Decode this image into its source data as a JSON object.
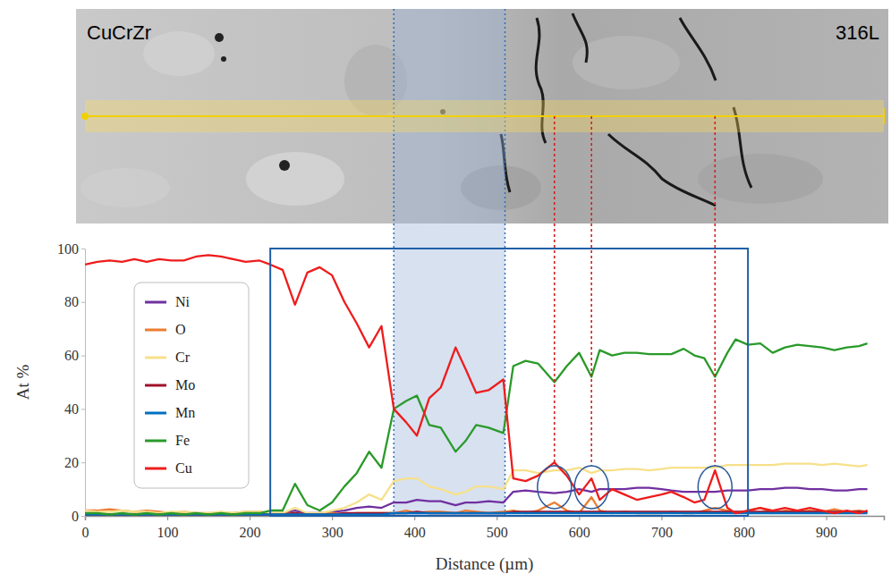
{
  "chart_data": {
    "type": "line",
    "x_label": "Distance (µm)",
    "y_label": "At %",
    "xlim": [
      0,
      970
    ],
    "xticks": [
      0,
      100,
      200,
      300,
      400,
      500,
      600,
      700,
      800,
      900
    ],
    "ylim": [
      0,
      100
    ],
    "yticks": [
      0,
      20,
      40,
      60,
      80,
      100
    ],
    "grid": false,
    "legend": "left",
    "x": [
      0,
      15,
      30,
      45,
      60,
      75,
      90,
      105,
      120,
      135,
      150,
      165,
      180,
      195,
      212,
      225,
      240,
      255,
      270,
      285,
      300,
      315,
      330,
      345,
      360,
      375,
      390,
      403,
      418,
      432,
      450,
      462,
      475,
      490,
      508,
      520,
      535,
      550,
      570,
      585,
      600,
      615,
      625,
      640,
      655,
      670,
      685,
      700,
      712,
      727,
      740,
      752,
      765,
      780,
      790,
      805,
      820,
      835,
      850,
      865,
      880,
      895,
      910,
      925,
      940,
      950
    ],
    "series": [
      {
        "name": "Ni",
        "color": "#7030a0",
        "values": [
          0.5,
          0.5,
          0.5,
          0.5,
          0.5,
          0.5,
          0.5,
          0.5,
          0.5,
          0.5,
          0.5,
          0.5,
          0.5,
          0.5,
          0.5,
          0.5,
          1,
          2,
          1,
          1,
          1.5,
          2,
          3,
          3.5,
          3,
          5,
          5,
          6,
          5.5,
          5.5,
          4,
          5,
          5,
          5.5,
          5,
          9,
          9.5,
          9,
          8.5,
          9,
          10,
          9,
          10,
          10,
          10,
          10.5,
          10.5,
          10,
          9.5,
          9,
          9,
          9,
          9,
          9.5,
          9.5,
          9.5,
          10,
          10,
          10.5,
          10.5,
          10,
          10,
          9.5,
          9.5,
          10,
          10
        ]
      },
      {
        "name": "O",
        "color": "#ed7d31",
        "values": [
          2,
          2,
          2.5,
          2,
          1.5,
          2,
          1.5,
          1,
          1.5,
          1,
          1,
          1,
          1,
          1.5,
          1.5,
          1,
          1,
          1,
          0.5,
          1,
          1,
          0.5,
          1,
          1,
          1,
          1,
          2,
          1,
          1.5,
          1.5,
          1,
          2,
          1.5,
          1,
          1.5,
          2,
          1,
          2,
          5,
          2,
          1,
          7,
          2,
          1,
          1.5,
          1,
          1,
          1,
          1.5,
          1,
          1,
          2,
          3,
          2,
          1,
          2,
          3,
          1,
          2,
          1.5,
          2,
          1.5,
          2.5,
          1.5,
          2,
          1.5
        ]
      },
      {
        "name": "Cr",
        "color": "#f7e08a",
        "values": [
          2,
          1.5,
          1.5,
          2,
          1.5,
          1.5,
          1,
          1.5,
          1.5,
          1,
          1,
          1.5,
          1,
          1.5,
          1.5,
          1,
          1,
          3,
          1,
          1,
          2,
          3,
          5,
          8,
          6,
          13,
          14,
          14,
          11,
          10,
          8,
          9,
          11,
          11,
          10,
          17,
          17,
          16,
          17,
          17,
          18,
          16,
          17,
          17,
          17.5,
          17.5,
          17,
          17.5,
          18,
          18,
          18,
          18,
          18,
          19,
          19,
          19,
          19,
          19,
          19.5,
          19.5,
          19.5,
          19,
          19.5,
          19,
          18.5,
          19
        ]
      },
      {
        "name": "Mo",
        "color": "#a0102a",
        "values": [
          0.5,
          0.5,
          0.5,
          0.5,
          0.5,
          0.5,
          0.5,
          0.5,
          0.5,
          0.5,
          0.5,
          0.5,
          0.5,
          0.5,
          0.5,
          0.5,
          0.5,
          1,
          0.5,
          0.5,
          0.5,
          1,
          1,
          1,
          1,
          1,
          1,
          1.5,
          1,
          1,
          1,
          1,
          1,
          1,
          1,
          1.5,
          1.5,
          1.5,
          1.5,
          1.5,
          1.5,
          1.5,
          1.5,
          1.5,
          1.5,
          1.5,
          1.5,
          1.5,
          1.5,
          1.5,
          1.5,
          1.5,
          1.5,
          1.5,
          1.5,
          1.5,
          1.5,
          1.5,
          1.5,
          1.5,
          1.5,
          1.5,
          1.5,
          1.5,
          1.5,
          1.5
        ]
      },
      {
        "name": "Mn",
        "color": "#0070c0",
        "values": [
          0.5,
          0.5,
          0.5,
          0.5,
          0.5,
          0.5,
          0.5,
          0.5,
          0.5,
          0.5,
          0.5,
          0.5,
          0.5,
          0.5,
          0.5,
          0.5,
          0.5,
          0.5,
          0.5,
          0.5,
          0.5,
          0.5,
          0.5,
          0.5,
          0.5,
          1,
          1,
          1,
          1,
          1,
          1,
          1,
          1,
          1,
          1,
          1,
          1,
          1,
          1,
          1,
          1,
          1,
          1,
          1,
          1,
          1,
          1,
          1,
          1,
          1,
          1,
          1,
          1,
          1,
          1,
          1,
          1,
          1,
          1,
          1,
          1,
          1,
          1,
          1,
          1,
          1
        ]
      },
      {
        "name": "Fe",
        "color": "#2a9a2a",
        "values": [
          1,
          1,
          0.5,
          1,
          0.5,
          1,
          0.5,
          1,
          0.5,
          1,
          0.5,
          1,
          0.5,
          1,
          1,
          2,
          2,
          12,
          4,
          2,
          5,
          11,
          16,
          24,
          18,
          40,
          43,
          45,
          34,
          33,
          24,
          28,
          34,
          33,
          31,
          56,
          58,
          57,
          50,
          56,
          61,
          52,
          62,
          60,
          61,
          61,
          60.5,
          60.5,
          60.5,
          62.5,
          60,
          59,
          52,
          61,
          66,
          64,
          64.5,
          61,
          63,
          64,
          63.5,
          63,
          62,
          63,
          63.5,
          64.5
        ]
      },
      {
        "name": "Cu",
        "color": "#ee1c1c",
        "values": [
          94,
          95,
          95.5,
          95,
          96,
          95,
          96,
          95.5,
          95.5,
          97,
          97.5,
          97,
          96,
          95,
          95.5,
          94,
          92,
          79,
          91,
          93,
          90,
          80,
          72,
          63,
          71,
          40,
          35,
          30,
          44,
          48,
          63,
          55,
          46,
          47,
          51,
          14,
          13,
          15,
          20,
          15,
          8,
          14,
          6,
          10,
          8,
          6,
          7,
          8,
          9,
          7,
          5,
          6,
          17,
          3,
          1,
          2,
          3,
          2,
          3,
          2,
          3,
          2,
          1,
          2,
          1,
          2
        ]
      }
    ],
    "annotations": {
      "image_labels": [
        "CuCrZr",
        "316L"
      ],
      "shaded_region": [
        375,
        510
      ],
      "box": {
        "x": [
          225,
          805
        ],
        "y": [
          0,
          100
        ]
      },
      "markers": [
        570,
        615,
        765
      ]
    }
  }
}
